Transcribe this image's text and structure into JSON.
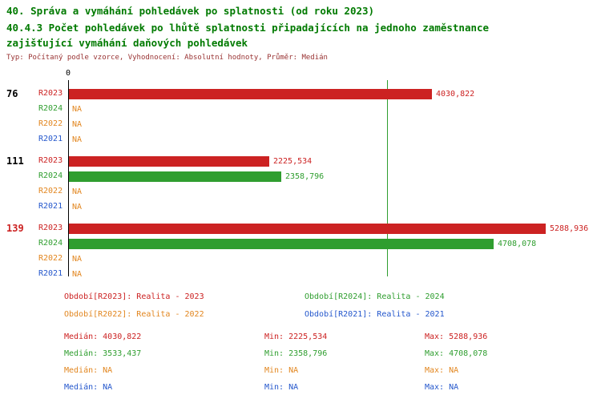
{
  "title": {
    "line1": "40. Správa a vymáhání pohledávek po splatnosti (od roku 2023)",
    "line2": "40.4.3 Počet pohledávek po lhůtě splatnosti připadajících na jednoho zaměstnance",
    "line3": "zajišťující vymáhání daňových pohledávek",
    "meta": "Typ: Počítaný podle vzorce, Vyhodnocení: Absolutní hodnoty, Průměr: Medián"
  },
  "colors": {
    "title_green": "#007a00",
    "meta_maroon": "#993333",
    "axis_black": "#000000",
    "na_text": "#e2861f",
    "series": {
      "R2023": "#cc2222",
      "R2024": "#2f9e2f",
      "R2022": "#e2861f",
      "R2021": "#2457cc"
    }
  },
  "chart_data": {
    "type": "bar",
    "orientation": "horizontal",
    "value_axis": {
      "zero_label": "0",
      "min": 0,
      "max": 5911
    },
    "grid": false,
    "series_order": [
      "R2023",
      "R2024",
      "R2022",
      "R2021"
    ],
    "median_line": {
      "series": "R2024",
      "value": 3533.437
    },
    "groups": [
      {
        "label": "76",
        "label_color": "#000000",
        "rows": [
          {
            "series": "R2023",
            "value": 4030.822,
            "display": "4030,822"
          },
          {
            "series": "R2024",
            "value": null,
            "display": "NA"
          },
          {
            "series": "R2022",
            "value": null,
            "display": "NA"
          },
          {
            "series": "R2021",
            "value": null,
            "display": "NA"
          }
        ]
      },
      {
        "label": "111",
        "label_color": "#000000",
        "rows": [
          {
            "series": "R2023",
            "value": 2225.534,
            "display": "2225,534"
          },
          {
            "series": "R2024",
            "value": 2358.796,
            "display": "2358,796"
          },
          {
            "series": "R2022",
            "value": null,
            "display": "NA"
          },
          {
            "series": "R2021",
            "value": null,
            "display": "NA"
          }
        ]
      },
      {
        "label": "139",
        "label_color": "#cc2222",
        "rows": [
          {
            "series": "R2023",
            "value": 5288.936,
            "display": "5288,936"
          },
          {
            "series": "R2024",
            "value": 4708.078,
            "display": "4708,078"
          },
          {
            "series": "R2022",
            "value": null,
            "display": "NA"
          },
          {
            "series": "R2021",
            "value": null,
            "display": "NA"
          }
        ]
      }
    ]
  },
  "legend": [
    {
      "series": "R2023",
      "text": "Období[R2023]: Realita - 2023",
      "col": 0,
      "row": 0
    },
    {
      "series": "R2024",
      "text": "Období[R2024]: Realita - 2024",
      "col": 1,
      "row": 0
    },
    {
      "series": "R2022",
      "text": "Období[R2022]: Realita - 2022",
      "col": 0,
      "row": 1
    },
    {
      "series": "R2021",
      "text": "Období[R2021]: Realita - 2021",
      "col": 1,
      "row": 1
    }
  ],
  "stats": [
    {
      "series": "R2023",
      "median": "Medián: 4030,822",
      "min": "Min: 2225,534",
      "max": "Max: 5288,936"
    },
    {
      "series": "R2024",
      "median": "Medián: 3533,437",
      "min": "Min: 2358,796",
      "max": "Max: 4708,078"
    },
    {
      "series": "R2022",
      "median": "Medián: NA",
      "min": "Min: NA",
      "max": "Max: NA"
    },
    {
      "series": "R2021",
      "median": "Medián: NA",
      "min": "Min: NA",
      "max": "Max: NA"
    }
  ]
}
